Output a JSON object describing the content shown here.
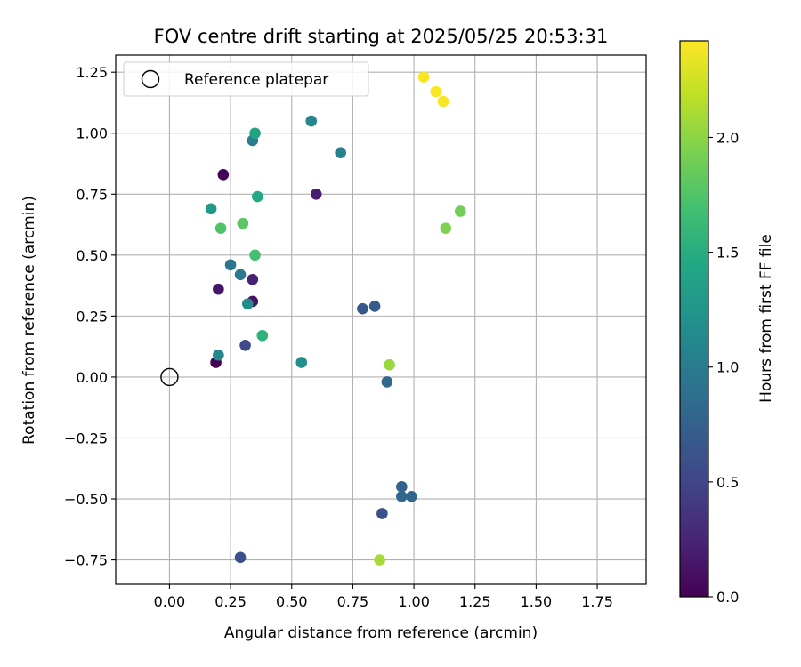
{
  "chart_data": {
    "type": "scatter",
    "title": "FOV centre drift starting at 2025/05/25 20:53:31",
    "xlabel": "Angular distance from reference (arcmin)",
    "ylabel": "Rotation from reference (arcmin)",
    "xlim": [
      -0.22,
      1.95
    ],
    "ylim": [
      -0.85,
      1.32
    ],
    "x_ticks": [
      0.0,
      0.25,
      0.5,
      0.75,
      1.0,
      1.25,
      1.5,
      1.75
    ],
    "x_tick_labels": [
      "0.00",
      "0.25",
      "0.50",
      "0.75",
      "1.00",
      "1.25",
      "1.50",
      "1.75"
    ],
    "y_ticks": [
      -0.75,
      -0.5,
      -0.25,
      0.0,
      0.25,
      0.5,
      0.75,
      1.0,
      1.25
    ],
    "y_tick_labels": [
      "−0.75",
      "−0.50",
      "−0.25",
      "0.00",
      "0.25",
      "0.50",
      "0.75",
      "1.00",
      "1.25"
    ],
    "grid": true,
    "legend": {
      "position": "top-left",
      "entries": [
        {
          "label": "Reference platepar",
          "marker": "open-circle"
        }
      ]
    },
    "reference_point": {
      "x": 0.0,
      "y": 0.0
    },
    "colorbar": {
      "label": "Hours from first FF file",
      "colormap": "viridis",
      "range": [
        0.0,
        2.42
      ],
      "ticks": [
        0.0,
        0.5,
        1.0,
        1.5,
        2.0
      ],
      "tick_labels": [
        "0.0",
        "0.5",
        "1.0",
        "1.5",
        "2.0"
      ]
    },
    "points": [
      {
        "x": 0.19,
        "y": 0.06,
        "hours": 0.0
      },
      {
        "x": 0.22,
        "y": 0.83,
        "hours": 0.03
      },
      {
        "x": 0.34,
        "y": 0.31,
        "hours": 0.12
      },
      {
        "x": 0.2,
        "y": 0.36,
        "hours": 0.15
      },
      {
        "x": 0.6,
        "y": 0.75,
        "hours": 0.2
      },
      {
        "x": 0.34,
        "y": 0.4,
        "hours": 0.22
      },
      {
        "x": 0.31,
        "y": 0.13,
        "hours": 0.52
      },
      {
        "x": 0.29,
        "y": -0.74,
        "hours": 0.58
      },
      {
        "x": 0.87,
        "y": -0.56,
        "hours": 0.6
      },
      {
        "x": 0.79,
        "y": 0.28,
        "hours": 0.65
      },
      {
        "x": 0.84,
        "y": 0.29,
        "hours": 0.7
      },
      {
        "x": 0.95,
        "y": -0.45,
        "hours": 0.75
      },
      {
        "x": 0.95,
        "y": -0.49,
        "hours": 0.78
      },
      {
        "x": 0.99,
        "y": -0.49,
        "hours": 0.8
      },
      {
        "x": 0.89,
        "y": -0.02,
        "hours": 0.82
      },
      {
        "x": 0.25,
        "y": 0.46,
        "hours": 0.95
      },
      {
        "x": 0.29,
        "y": 0.42,
        "hours": 0.98
      },
      {
        "x": 0.34,
        "y": 0.97,
        "hours": 1.02
      },
      {
        "x": 0.7,
        "y": 0.92,
        "hours": 1.05
      },
      {
        "x": 0.58,
        "y": 1.05,
        "hours": 1.1
      },
      {
        "x": 0.2,
        "y": 0.09,
        "hours": 1.12
      },
      {
        "x": 0.32,
        "y": 0.3,
        "hours": 1.15
      },
      {
        "x": 0.54,
        "y": 0.06,
        "hours": 1.18
      },
      {
        "x": 0.17,
        "y": 0.69,
        "hours": 1.3
      },
      {
        "x": 0.35,
        "y": 1.0,
        "hours": 1.4
      },
      {
        "x": 0.36,
        "y": 0.74,
        "hours": 1.45
      },
      {
        "x": 0.38,
        "y": 0.17,
        "hours": 1.55
      },
      {
        "x": 0.35,
        "y": 0.5,
        "hours": 1.7
      },
      {
        "x": 0.21,
        "y": 0.61,
        "hours": 1.75
      },
      {
        "x": 0.3,
        "y": 0.63,
        "hours": 1.8
      },
      {
        "x": 1.19,
        "y": 0.68,
        "hours": 1.9
      },
      {
        "x": 1.13,
        "y": 0.61,
        "hours": 1.95
      },
      {
        "x": 0.9,
        "y": 0.05,
        "hours": 2.05
      },
      {
        "x": 0.86,
        "y": -0.75,
        "hours": 2.1
      },
      {
        "x": 1.04,
        "y": 1.23,
        "hours": 2.4
      },
      {
        "x": 1.09,
        "y": 1.17,
        "hours": 2.4
      },
      {
        "x": 1.12,
        "y": 1.13,
        "hours": 2.4
      }
    ]
  }
}
